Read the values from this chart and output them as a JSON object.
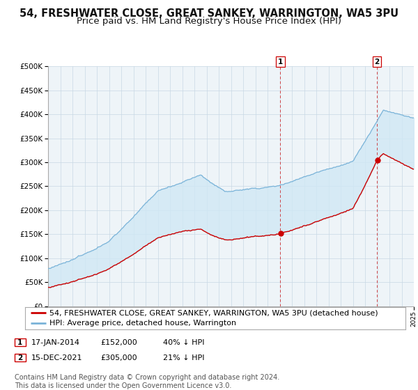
{
  "title": "54, FRESHWATER CLOSE, GREAT SANKEY, WARRINGTON, WA5 3PU",
  "subtitle": "Price paid vs. HM Land Registry's House Price Index (HPI)",
  "ylim": [
    0,
    500000
  ],
  "yticks": [
    0,
    50000,
    100000,
    150000,
    200000,
    250000,
    300000,
    350000,
    400000,
    450000,
    500000
  ],
  "hpi_color": "#7ab3d8",
  "price_color": "#cc0000",
  "fill_color": "#d0e8f5",
  "marker_color": "#cc0000",
  "vline_color": "#cc0000",
  "background_color": "#eef4f8",
  "grid_color": "#c8d8e4",
  "legend_entry1": "54, FRESHWATER CLOSE, GREAT SANKEY, WARRINGTON, WA5 3PU (detached house)",
  "legend_entry2": "HPI: Average price, detached house, Warrington",
  "sale1_date": "17-JAN-2014",
  "sale1_price": "£152,000",
  "sale1_hpi": "40% ↓ HPI",
  "sale1_year": 2014.05,
  "sale1_price_val": 152000,
  "sale2_date": "15-DEC-2021",
  "sale2_price": "£305,000",
  "sale2_hpi": "21% ↓ HPI",
  "sale2_year": 2021.96,
  "sale2_price_val": 305000,
  "footer": "Contains HM Land Registry data © Crown copyright and database right 2024.\nThis data is licensed under the Open Government Licence v3.0.",
  "title_fontsize": 10.5,
  "subtitle_fontsize": 9.5,
  "legend_fontsize": 8,
  "footer_fontsize": 7
}
